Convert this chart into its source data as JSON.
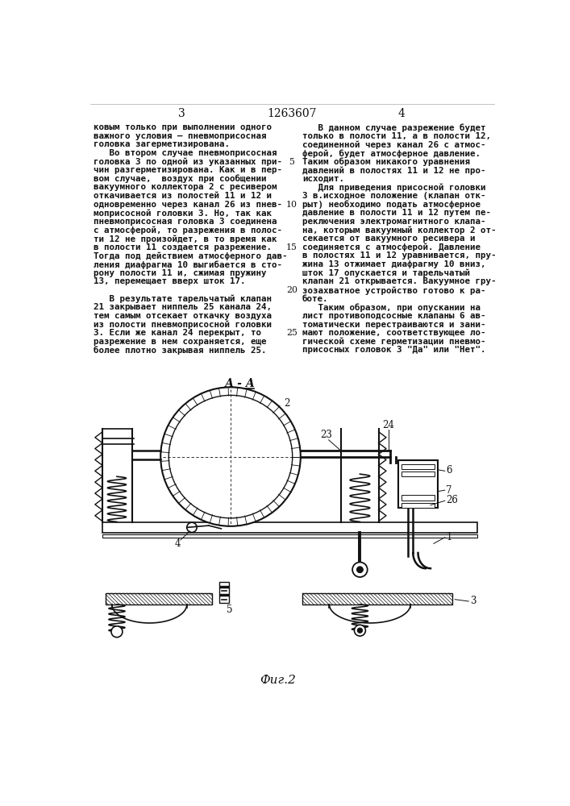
{
  "page_number_left": "3",
  "page_number_right": "4",
  "patent_number": "1263607",
  "background_color": "#ffffff",
  "text_color": "#111111",
  "fig_label": "Фиг.2",
  "section_label": "А-А",
  "left_col": [
    "ковым только при выполнении одного",
    "важного условия – пневмоприсосная",
    "головка загерметизирована.",
    "   Во втором случае пневмоприсосная",
    "головка 3 по одной из указанных при-",
    "чин разгерметизирована. Как и в пер-",
    "вом случае,  воздух при сообщении",
    "вакуумного коллектора 2 с ресивером",
    "откачивается из полостей 11 и 12 и",
    "одновременно через канал 26 из пнев-",
    "моприсосной головки 3. Но, так как",
    "пневмоприсосная головка 3 соединена",
    "с атмосферой, то разрежения в полос-",
    "ти 12 не произойдет, в то время как",
    "в полости 11 создается разрежение.",
    "Тогда под действием атмосферного дав-",
    "ления диафрагма 10 выгибается в сто-",
    "рону полости 11 и, сжимая пружину",
    "13, перемещает вверх шток 17.",
    "",
    "   В результате тарельчатый клапан",
    "21 закрывает ниппель 25 канала 24,",
    "тем самым отсекает откачку воздуха",
    "из полости пневмоприсосной головки",
    "3. Если же канал 24 перекрыт, то",
    "разрежение в нем сохраняется, еще",
    "более плотно закрывая ниппель 25."
  ],
  "right_col": [
    "   В данном случае разрежение будет",
    "только в полости 11, а в полости 12,",
    "соединенной через канал 26 с атмос-",
    "ферой, будет атмосферное давление.",
    "Таким образом никакого уравнения",
    "давлений в полостях 11 и 12 не про-",
    "исходит.",
    "   Для приведения присосной головки",
    "3 в.исходное положение (клапан отк-",
    "рыт) необходимо подать атмосферное",
    "давление в полости 11 и 12 путем пе-",
    "реключения электромагнитного клапа-",
    "на, которым вакуумный коллектор 2 от-",
    "секается от вакуумного ресивера и",
    "соединяется с атмосферой. Давление",
    "в полостях 11 и 12 уравнивается, пру-",
    "жина 13 отжимает диафрагму 10 вниз,",
    "шток 17 опускается и тарельчатый",
    "клапан 21 открывается. Вакуумное гру-",
    "зозахватное устройство готово к ра-",
    "боте.",
    "   Таким образом, при опускании на",
    "лист противоподсосные клапаны 6 ав-",
    "томатически перестраиваются и зани-",
    "мают положение, соответствующее ло-",
    "гической схеме герметизации пневмо-",
    "присосных головок 3 \"Да\" или \"Нет\"."
  ],
  "line_numbers_at_rows": {
    "4": 5,
    "9": 10,
    "14": 15,
    "19": 20,
    "24": 25
  }
}
